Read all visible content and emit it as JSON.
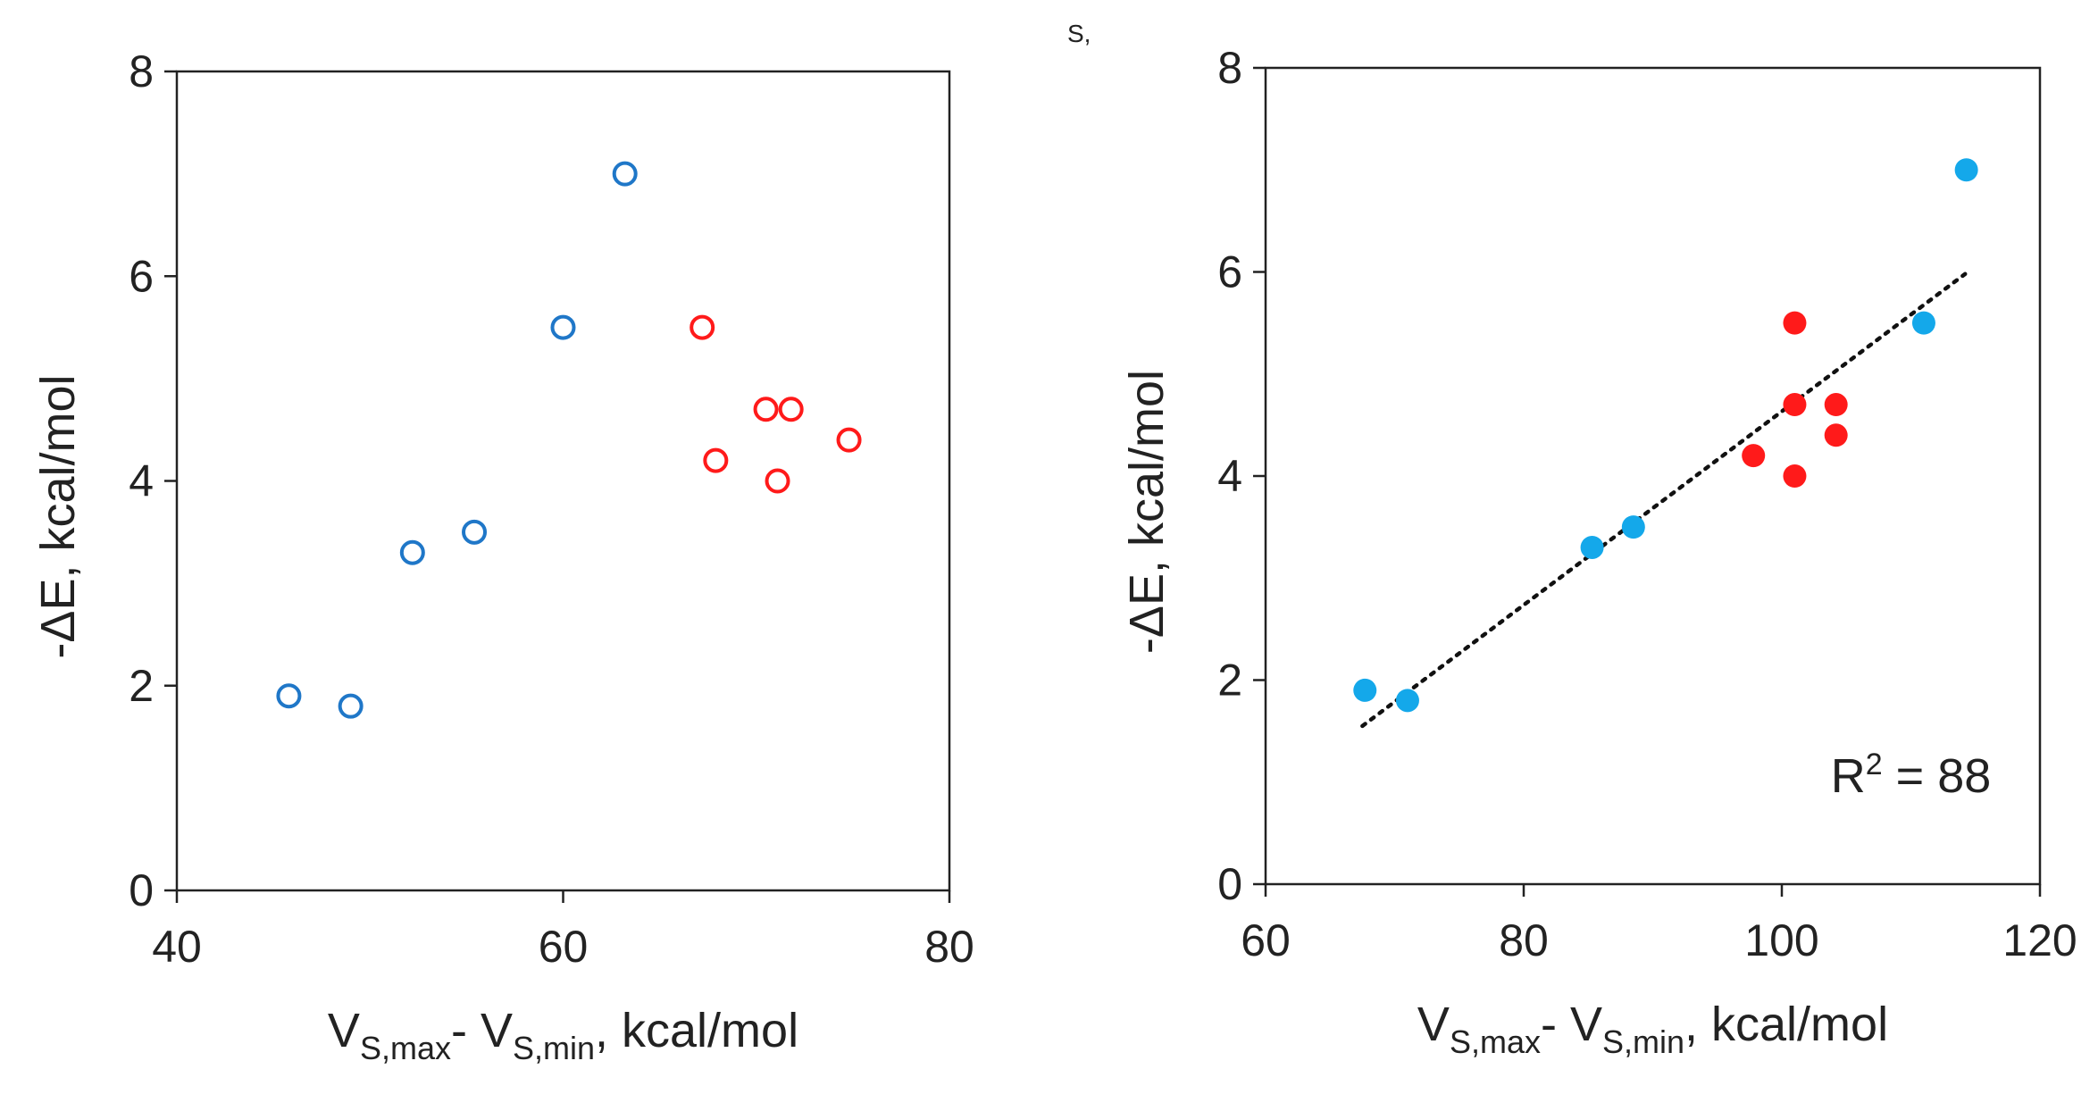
{
  "figure": {
    "stray_mark": "S,",
    "colors": {
      "axis": "#222222",
      "blue_open": "#1f77c8",
      "red": "#ff1a1a",
      "blue_filled": "#14a8ea",
      "trendline": "#111111"
    }
  },
  "chart_data": [
    {
      "id": "left",
      "type": "scatter",
      "title": "",
      "xlabel": {
        "main": "V",
        "sub1": "S,max",
        "mid": "- V",
        "sub2": "S,min",
        "tail": ", kcal/mol"
      },
      "ylabel": "-ΔE, kcal/mol",
      "xlim": [
        40,
        80
      ],
      "ylim": [
        0,
        8
      ],
      "xticks": [
        "40",
        "60",
        "80"
      ],
      "yticks": [
        "0",
        "2",
        "4",
        "6",
        "8"
      ],
      "series": [
        {
          "name": "blue",
          "marker": "open-circle",
          "color": "#1f77c8",
          "points": [
            [
              45.8,
              1.9
            ],
            [
              49.0,
              1.8
            ],
            [
              52.2,
              3.3
            ],
            [
              55.4,
              3.5
            ],
            [
              60.0,
              5.5
            ],
            [
              63.2,
              7.0
            ]
          ]
        },
        {
          "name": "red",
          "marker": "open-circle",
          "color": "#ff1a1a",
          "points": [
            [
              67.2,
              5.5
            ],
            [
              67.9,
              4.2
            ],
            [
              70.5,
              4.7
            ],
            [
              71.1,
              4.0
            ],
            [
              71.8,
              4.7
            ],
            [
              74.8,
              4.4
            ]
          ]
        }
      ]
    },
    {
      "id": "right",
      "type": "scatter",
      "title": "",
      "xlabel": {
        "main": "V",
        "sub1": "S,max",
        "mid": "- V",
        "sub2": "S,min",
        "tail": ", kcal/mol"
      },
      "ylabel": "-ΔE, kcal/mol",
      "xlim": [
        60,
        120
      ],
      "ylim": [
        0,
        8
      ],
      "xticks": [
        "60",
        "80",
        "100",
        "120"
      ],
      "yticks": [
        "0",
        "2",
        "4",
        "6",
        "8"
      ],
      "annotation": {
        "text": "R",
        "sup": "2",
        "tail": " = 88"
      },
      "trendline": {
        "x": [
          67.5,
          114.2
        ],
        "y": [
          1.55,
          5.98
        ]
      },
      "series": [
        {
          "name": "blue",
          "marker": "filled-circle",
          "color": "#14a8ea",
          "points": [
            [
              67.7,
              1.9
            ],
            [
              71.0,
              1.8
            ],
            [
              85.3,
              3.3
            ],
            [
              88.5,
              3.5
            ],
            [
              111.0,
              5.5
            ],
            [
              114.3,
              7.0
            ]
          ]
        },
        {
          "name": "red",
          "marker": "filled-circle",
          "color": "#ff1a1a",
          "points": [
            [
              97.8,
              4.2
            ],
            [
              101.0,
              5.5
            ],
            [
              101.0,
              4.7
            ],
            [
              101.0,
              4.0
            ],
            [
              104.2,
              4.7
            ],
            [
              104.2,
              4.4
            ]
          ]
        }
      ]
    }
  ]
}
